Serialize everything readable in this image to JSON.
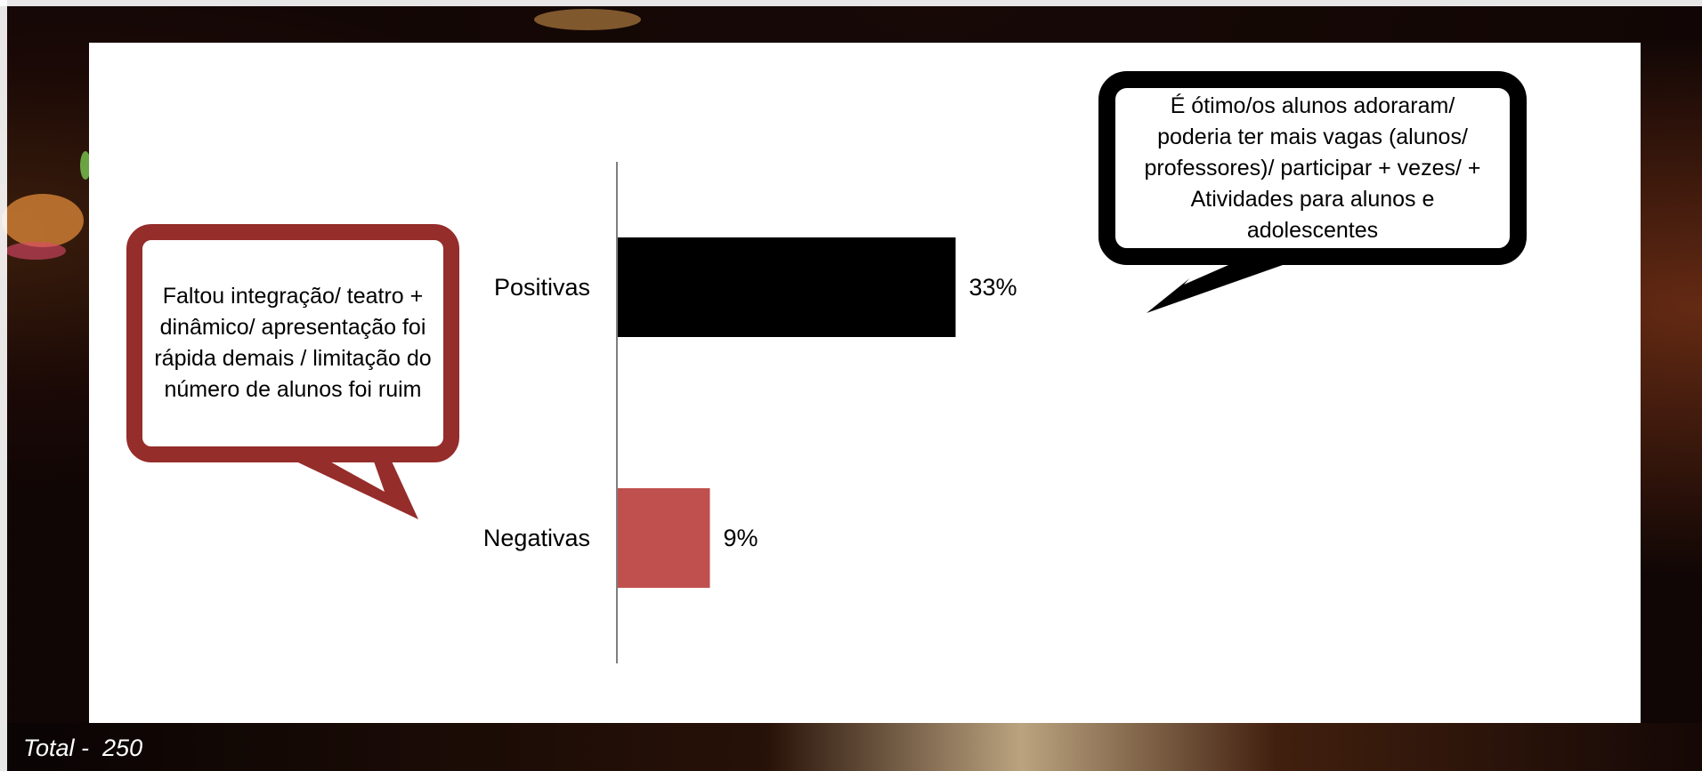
{
  "chart_data": {
    "type": "bar",
    "orientation": "horizontal",
    "categories": [
      "Positivas",
      "Negativas"
    ],
    "values": [
      33,
      9
    ],
    "value_labels": [
      "33%",
      "9%"
    ],
    "colors": [
      "#000000",
      "#c0504d"
    ],
    "xlim": [
      0,
      100
    ],
    "grid": false,
    "title": "",
    "xlabel": "",
    "ylabel": ""
  },
  "callouts": {
    "negative": {
      "text": "Faltou integração/ teatro + dinâmico/ apresentação foi rápida demais  / limitação do número de alunos foi ruim",
      "border_color": "#952d2b"
    },
    "positive": {
      "text": "É ótimo/os alunos adoraram/ poderia ter mais vagas (alunos/ professores)/ participar + vezes/ + Atividades para alunos e adolescentes",
      "border_color": "#000000"
    }
  },
  "footer": {
    "total": "Total -  250"
  }
}
